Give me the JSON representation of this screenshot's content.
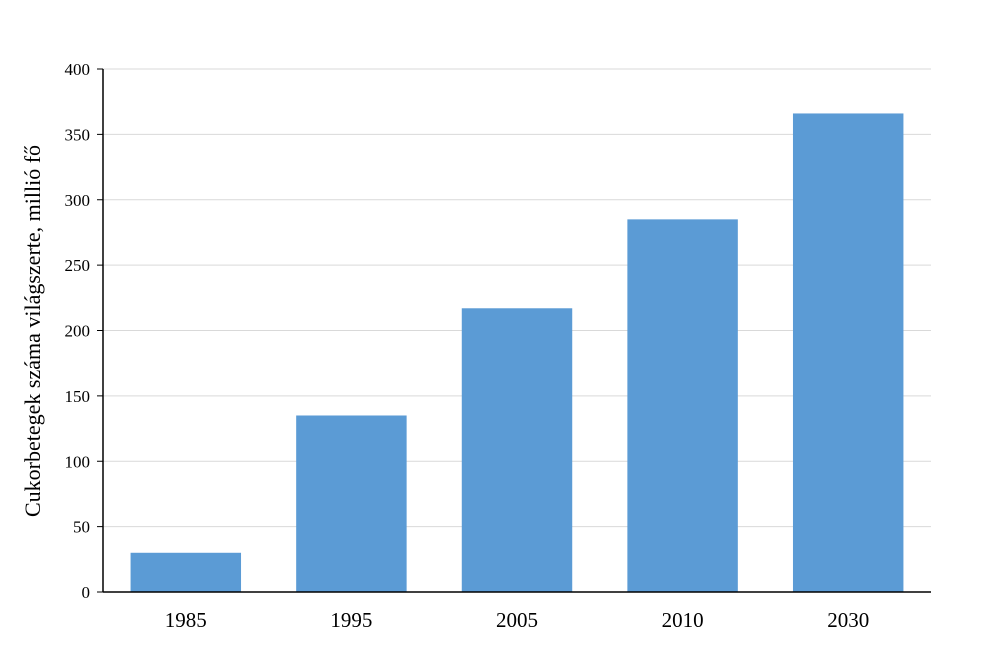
{
  "chart_data": {
    "type": "bar",
    "title": "",
    "xlabel": "",
    "ylabel": "Cukorbetegek száma világszerte, millió fő",
    "categories": [
      "1985",
      "1995",
      "2005",
      "2010",
      "2030"
    ],
    "values": [
      30,
      135,
      217,
      285,
      366
    ],
    "ylim": [
      0,
      400
    ],
    "yticks": [
      0,
      50,
      100,
      150,
      200,
      250,
      300,
      350,
      400
    ],
    "grid": true,
    "legend": "none",
    "colors": {
      "bar": "#5b9bd5",
      "grid": "#d9d9d9",
      "axis": "#000000"
    }
  }
}
